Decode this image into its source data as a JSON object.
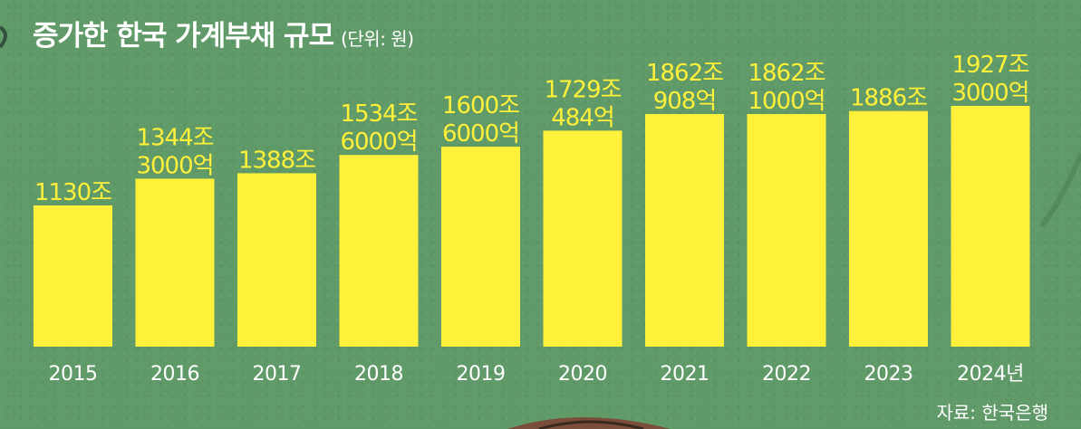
{
  "header": {
    "title": "증가한 한국 가계부채 규모",
    "unit": "(단위: 원)"
  },
  "source": "자료: 한국은행",
  "colors": {
    "background": "#5f9a68",
    "bar": "#fff03a",
    "value_label": "#fff03a",
    "axis_label": "#ffffff"
  },
  "chart_data": {
    "type": "bar",
    "title": "증가한 한국 가계부채 규모",
    "unit": "(단위: 원)",
    "xlabel": "",
    "ylabel": "",
    "ylim": [
      0,
      1950
    ],
    "grid": false,
    "legend": "none",
    "categories": [
      "2015",
      "2016",
      "2017",
      "2018",
      "2019",
      "2020",
      "2021",
      "2022",
      "2023",
      "2024년"
    ],
    "values": [
      1130,
      1344.3,
      1388,
      1534.6,
      1600.6,
      1729.0484,
      1862.0908,
      1862.1,
      1886,
      1927.3
    ],
    "value_labels": [
      [
        "1130조"
      ],
      [
        "1344조",
        "3000억"
      ],
      [
        "1388조"
      ],
      [
        "1534조",
        "6000억"
      ],
      [
        "1600조",
        "6000억"
      ],
      [
        "1729조",
        "484억"
      ],
      [
        "1862조",
        "908억"
      ],
      [
        "1862조",
        "1000억"
      ],
      [
        "1886조"
      ],
      [
        "1927조",
        "3000억"
      ]
    ]
  }
}
